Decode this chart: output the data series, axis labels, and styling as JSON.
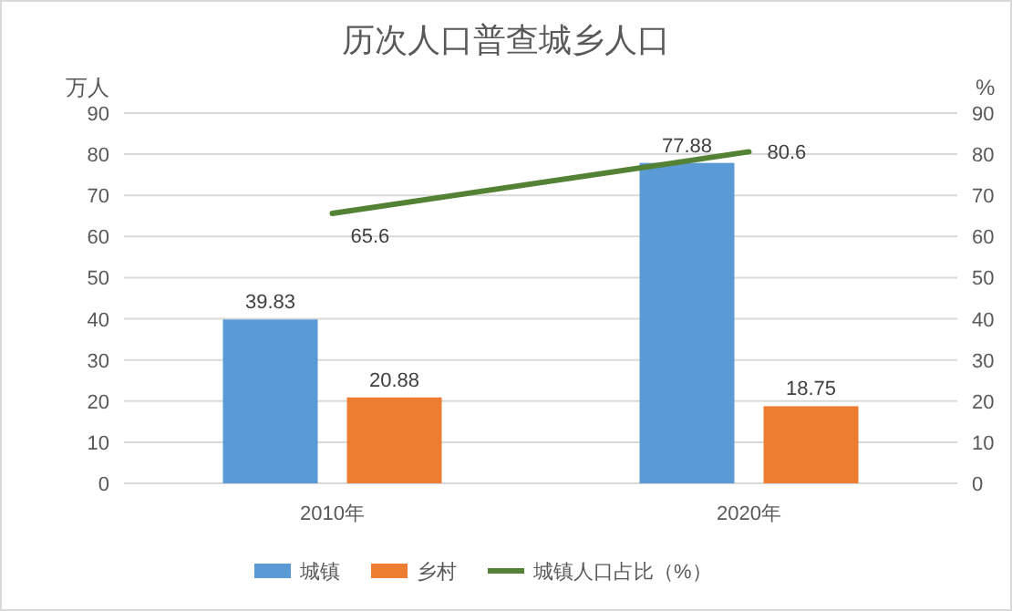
{
  "chart_data": {
    "type": "bar",
    "title": "历次人口普查城乡人口",
    "ylabel": "万人",
    "y2label": "%",
    "categories": [
      "2010年",
      "2020年"
    ],
    "series": [
      {
        "name": "城镇",
        "color": "#5b9bd5",
        "values": [
          39.83,
          77.88
        ]
      },
      {
        "name": "乡村",
        "color": "#ed7d31",
        "values": [
          20.88,
          18.75
        ]
      },
      {
        "name": "城镇人口占比（%）",
        "type": "line",
        "axis": "y2",
        "color": "#548235",
        "values": [
          65.6,
          80.6
        ]
      }
    ],
    "ylim": [
      0,
      90
    ],
    "yticks": [
      0,
      10,
      20,
      30,
      40,
      50,
      60,
      70,
      80,
      90
    ],
    "y2lim": [
      0,
      90
    ],
    "y2ticks": [
      0,
      10,
      20,
      30,
      40,
      50,
      60,
      70,
      80,
      90
    ],
    "grid": "y",
    "legend": "bottom",
    "data_labels": true
  }
}
